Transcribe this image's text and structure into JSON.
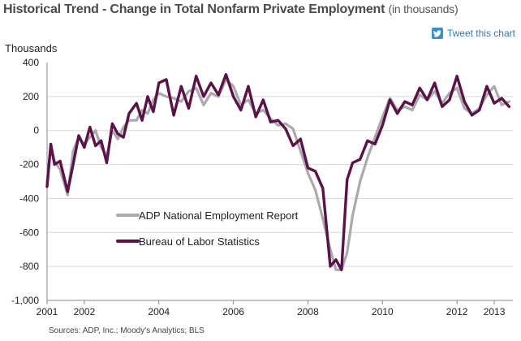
{
  "title": {
    "main": "Historical Trend - Change in Total Nonfarm Private Employment",
    "sub": "(in thousands)"
  },
  "tweet": {
    "label": "Tweet this chart",
    "icon": "twitter-bird-icon"
  },
  "source": "Sources: ADP, Inc.; Moody's Analytics; BLS",
  "colors": {
    "adp": "#aaaaaa",
    "bls": "#5b1248",
    "grid": "#d9d9d9",
    "tweet_icon": "#3a8fd0"
  },
  "chart_data": {
    "type": "line",
    "title": "Historical Trend - Change in Total Nonfarm Private Employment (in thousands)",
    "ylabel": "Thousands",
    "xlabel": "",
    "ylim": [
      -1000,
      400
    ],
    "xlim": [
      2001.0,
      2013.5
    ],
    "yticks": [
      400,
      200,
      0,
      -200,
      -400,
      -600,
      -800,
      -1000
    ],
    "ytick_labels": [
      "400",
      "200",
      "0",
      "-200",
      "-400",
      "-600",
      "-800",
      "-1,000"
    ],
    "xticks": [
      2001,
      2002,
      2004,
      2006,
      2008,
      2010,
      2012,
      2013
    ],
    "xtick_labels": [
      "2001",
      "2002",
      "2004",
      "2006",
      "2008",
      "2010",
      "2012",
      "2013"
    ],
    "grid": "horizontal",
    "legend_position": "center-left",
    "series": [
      {
        "name": "ADP National Employment Report",
        "color": "#aaaaaa",
        "x": [
          2001.0,
          2001.1,
          2001.2,
          2001.35,
          2001.55,
          2001.7,
          2001.85,
          2002.0,
          2002.15,
          2002.3,
          2002.45,
          2002.6,
          2002.75,
          2002.9,
          2003.05,
          2003.2,
          2003.4,
          2003.55,
          2003.7,
          2003.85,
          2004.0,
          2004.2,
          2004.4,
          2004.6,
          2004.8,
          2005.0,
          2005.2,
          2005.4,
          2005.6,
          2005.8,
          2006.0,
          2006.2,
          2006.4,
          2006.6,
          2006.8,
          2007.0,
          2007.2,
          2007.4,
          2007.6,
          2007.8,
          2008.0,
          2008.2,
          2008.4,
          2008.6,
          2008.75,
          2008.9,
          2009.05,
          2009.2,
          2009.4,
          2009.6,
          2009.8,
          2010.0,
          2010.2,
          2010.4,
          2010.6,
          2010.8,
          2011.0,
          2011.2,
          2011.4,
          2011.6,
          2011.8,
          2012.0,
          2012.2,
          2012.4,
          2012.6,
          2012.8,
          2013.0,
          2013.2,
          2013.4
        ],
        "values": [
          -300,
          -100,
          -180,
          -230,
          -380,
          -120,
          -40,
          -80,
          -40,
          0,
          -100,
          -150,
          0,
          -50,
          20,
          60,
          60,
          120,
          100,
          180,
          220,
          200,
          190,
          170,
          230,
          250,
          150,
          220,
          200,
          300,
          260,
          150,
          180,
          100,
          120,
          70,
          30,
          40,
          10,
          -120,
          -250,
          -350,
          -520,
          -700,
          -820,
          -820,
          -720,
          -500,
          -300,
          -160,
          -40,
          80,
          190,
          120,
          140,
          120,
          210,
          180,
          230,
          160,
          220,
          250,
          130,
          100,
          130,
          210,
          260,
          150,
          170
        ]
      },
      {
        "name": "Bureau of Labor Statistics",
        "color": "#5b1248",
        "x": [
          2001.0,
          2001.1,
          2001.2,
          2001.35,
          2001.55,
          2001.7,
          2001.85,
          2002.0,
          2002.15,
          2002.3,
          2002.45,
          2002.6,
          2002.75,
          2002.9,
          2003.05,
          2003.2,
          2003.4,
          2003.55,
          2003.7,
          2003.85,
          2004.0,
          2004.2,
          2004.4,
          2004.6,
          2004.8,
          2005.0,
          2005.2,
          2005.4,
          2005.6,
          2005.8,
          2006.0,
          2006.2,
          2006.4,
          2006.6,
          2006.8,
          2007.0,
          2007.2,
          2007.4,
          2007.6,
          2007.8,
          2008.0,
          2008.2,
          2008.4,
          2008.6,
          2008.75,
          2008.9,
          2009.05,
          2009.2,
          2009.4,
          2009.6,
          2009.8,
          2010.0,
          2010.2,
          2010.4,
          2010.6,
          2010.8,
          2011.0,
          2011.2,
          2011.4,
          2011.6,
          2011.8,
          2012.0,
          2012.2,
          2012.4,
          2012.6,
          2012.8,
          2013.0,
          2013.2,
          2013.4
        ],
        "values": [
          -330,
          -80,
          -200,
          -180,
          -360,
          -200,
          -30,
          -100,
          20,
          -90,
          -60,
          -190,
          40,
          -20,
          -40,
          100,
          160,
          60,
          200,
          110,
          280,
          300,
          90,
          260,
          130,
          320,
          200,
          280,
          210,
          330,
          200,
          120,
          260,
          80,
          180,
          50,
          60,
          10,
          -90,
          -50,
          -220,
          -240,
          -340,
          -800,
          -760,
          -820,
          -290,
          -190,
          -170,
          -60,
          -80,
          30,
          180,
          100,
          170,
          150,
          250,
          180,
          280,
          140,
          180,
          320,
          170,
          90,
          120,
          260,
          160,
          190,
          140
        ]
      }
    ]
  }
}
